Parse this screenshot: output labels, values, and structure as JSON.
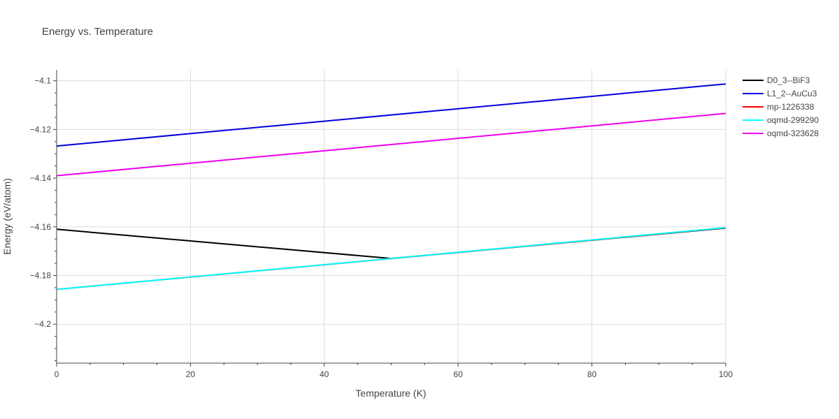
{
  "chart_data": {
    "type": "line",
    "title": "Energy vs. Temperature",
    "xlabel": "Temperature (K)",
    "ylabel": "Energy (eV/atom)",
    "xlim": [
      0,
      100
    ],
    "ylim": [
      -4.216,
      -4.0955
    ],
    "xticks": [
      0,
      20,
      40,
      60,
      80,
      100
    ],
    "yticks": [
      -4.1,
      -4.12,
      -4.14,
      -4.16,
      -4.18,
      -4.2
    ],
    "ytick_labels": [
      "−4.1",
      "−4.12",
      "−4.14",
      "−4.16",
      "−4.18",
      "−4.2"
    ],
    "grid": true,
    "legend_position": "right",
    "series": [
      {
        "name": "D0_3--BiF3",
        "color": "#000000",
        "x": [
          0,
          50,
          100
        ],
        "y": [
          -4.161,
          -4.173,
          -4.1605
        ]
      },
      {
        "name": "L1_2--AuCu3",
        "color": "#0000dd",
        "x": [
          0,
          100
        ],
        "y": [
          -4.1268,
          -4.1013
        ]
      },
      {
        "name": "mp-1226338",
        "color": "#ff0000",
        "x": [
          0,
          100
        ],
        "y": [
          -4.1857,
          -4.1604
        ]
      },
      {
        "name": "oqmd-299290",
        "color": "#00ffff",
        "x": [
          0,
          100
        ],
        "y": [
          -4.1857,
          -4.1603
        ]
      },
      {
        "name": "oqmd-323628",
        "color": "#ee00ee",
        "x": [
          0,
          100
        ],
        "y": [
          -4.139,
          -4.1134
        ]
      }
    ]
  }
}
